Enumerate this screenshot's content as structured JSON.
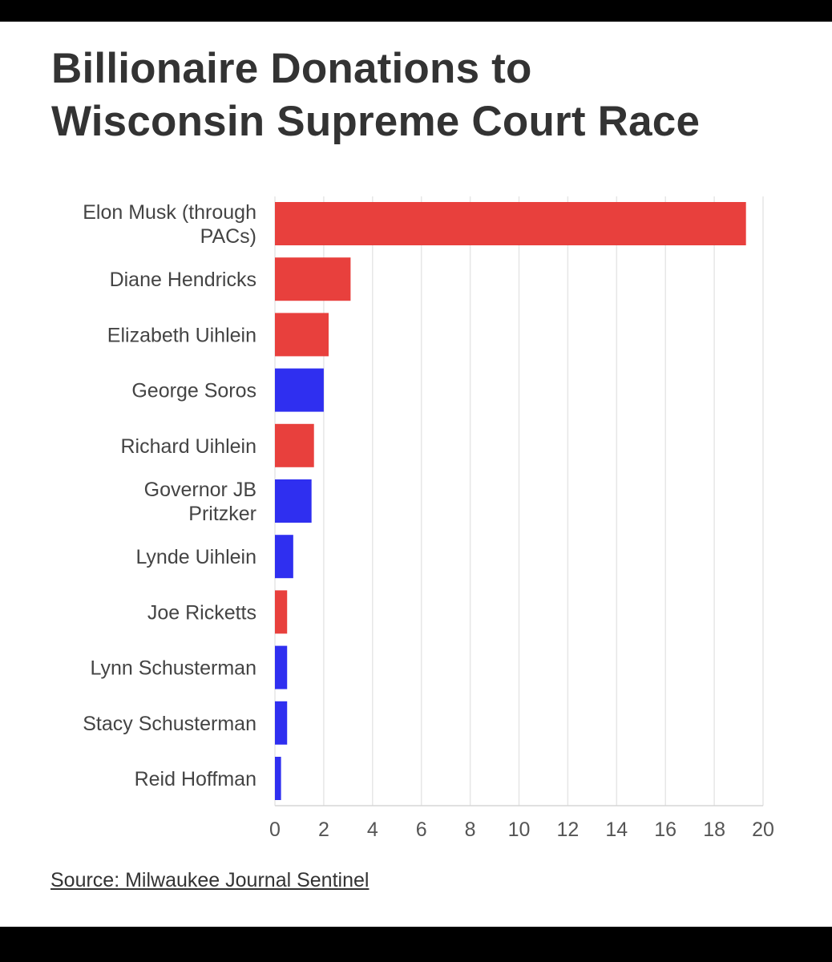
{
  "frame": {
    "background": "#000000",
    "card_background": "#ffffff"
  },
  "chart_data": {
    "type": "bar",
    "orientation": "horizontal",
    "title_lines": [
      "Billionaire Donations to",
      "Wisconsin Supreme Court Race"
    ],
    "categories": [
      [
        "Elon Musk (through",
        "PACs)"
      ],
      [
        "Diane Hendricks"
      ],
      [
        "Elizabeth Uihlein"
      ],
      [
        "George Soros"
      ],
      [
        "Richard Uihlein"
      ],
      [
        "Governor JB",
        "Pritzker"
      ],
      [
        "Lynde Uihlein"
      ],
      [
        "Joe Ricketts"
      ],
      [
        "Lynn Schusterman"
      ],
      [
        "Stacy Schusterman"
      ],
      [
        "Reid Hoffman"
      ]
    ],
    "values": [
      19.3,
      3.1,
      2.2,
      2.0,
      1.6,
      1.5,
      0.75,
      0.5,
      0.5,
      0.5,
      0.25
    ],
    "bar_colors": [
      "#e8403d",
      "#e8403d",
      "#e8403d",
      "#2f2ff0",
      "#e8403d",
      "#2f2ff0",
      "#2f2ff0",
      "#e8403d",
      "#2f2ff0",
      "#2f2ff0",
      "#2f2ff0"
    ],
    "xlim": [
      0,
      20
    ],
    "xticks": [
      0,
      2,
      4,
      6,
      8,
      10,
      12,
      14,
      16,
      18,
      20
    ],
    "grid": "vertical",
    "xlabel": "",
    "ylabel": ""
  },
  "source": "Source: Milwaukee Journal Sentinel"
}
